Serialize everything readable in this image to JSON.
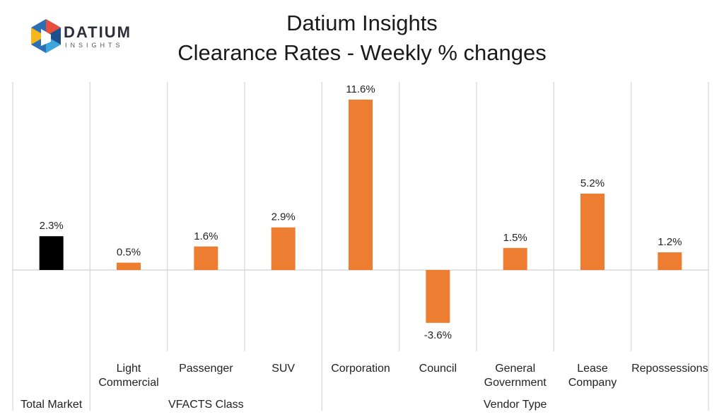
{
  "header": {
    "title_line1": "Datium Insights",
    "title_line2": "Clearance Rates - Weekly % changes",
    "logo_word": "DATIUM",
    "logo_sub": "INSIGHTS"
  },
  "chart_data": {
    "type": "bar",
    "title": "Clearance Rates - Weekly % changes",
    "categories": [
      "Total Market",
      [
        "Light",
        "Commercial"
      ],
      "Passenger",
      "SUV",
      "Corporation",
      "Council",
      [
        "General",
        "Government"
      ],
      [
        "Lease",
        "Company"
      ],
      "Repossessions"
    ],
    "values": [
      2.3,
      0.5,
      1.6,
      2.9,
      11.6,
      -3.6,
      1.5,
      5.2,
      1.2
    ],
    "value_labels": [
      "2.3%",
      "0.5%",
      "1.6%",
      "2.9%",
      "11.6%",
      "-3.6%",
      "1.5%",
      "5.2%",
      "1.2%"
    ],
    "groups": [
      {
        "name": "Total Market",
        "members": [
          0
        ]
      },
      {
        "name": "VFACTS Class",
        "members": [
          1,
          2,
          3
        ]
      },
      {
        "name": "Vendor Type",
        "members": [
          4,
          5,
          6,
          7,
          8
        ]
      }
    ],
    "colors": {
      "highlight": "#000000",
      "default": "#ED7D31",
      "grid": "#d9d9d9"
    },
    "highlight_index": 0,
    "ylim": [
      -6.9,
      12.8
    ],
    "grid": true
  }
}
